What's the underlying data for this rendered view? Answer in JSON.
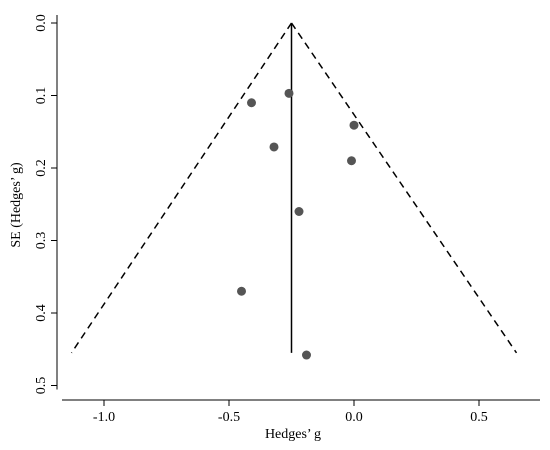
{
  "chart_data": {
    "type": "scatter",
    "subtype": "funnel-plot",
    "xlabel": "Hedges’ g",
    "ylabel": "SE (Hedges’ g)",
    "xlim": [
      -1.15,
      0.68
    ],
    "ylim": [
      0,
      0.5
    ],
    "y_axis_inverted": true,
    "x_ticks": [
      -1.0,
      -0.5,
      0.0,
      0.5
    ],
    "x_tick_labels": [
      "-1.0",
      "-0.5",
      "0.0",
      "0.5"
    ],
    "y_ticks": [
      0.0,
      0.1,
      0.2,
      0.3,
      0.4,
      0.5
    ],
    "y_tick_labels": [
      "0.0",
      "0.1",
      "0.2",
      "0.3",
      "0.4",
      "0.5"
    ],
    "grid": false,
    "legend": "none",
    "pooled_estimate": -0.25,
    "funnel_lines": {
      "style": "dashed",
      "apex": [
        -0.25,
        0.0
      ],
      "left_base": [
        -1.13,
        0.455
      ],
      "right_base": [
        0.65,
        0.455
      ]
    },
    "effect_line": {
      "x": -0.25,
      "y_from": 0.0,
      "y_to": 0.455,
      "style": "solid"
    },
    "points": [
      {
        "x": -0.26,
        "y": 0.097
      },
      {
        "x": -0.41,
        "y": 0.11
      },
      {
        "x": 0.0,
        "y": 0.141
      },
      {
        "x": -0.32,
        "y": 0.171
      },
      {
        "x": -0.01,
        "y": 0.19
      },
      {
        "x": -0.22,
        "y": 0.26
      },
      {
        "x": -0.45,
        "y": 0.37
      },
      {
        "x": -0.19,
        "y": 0.458
      }
    ],
    "colors": {
      "points": "#555555",
      "lines": "#000000",
      "axes": "#000000"
    }
  }
}
